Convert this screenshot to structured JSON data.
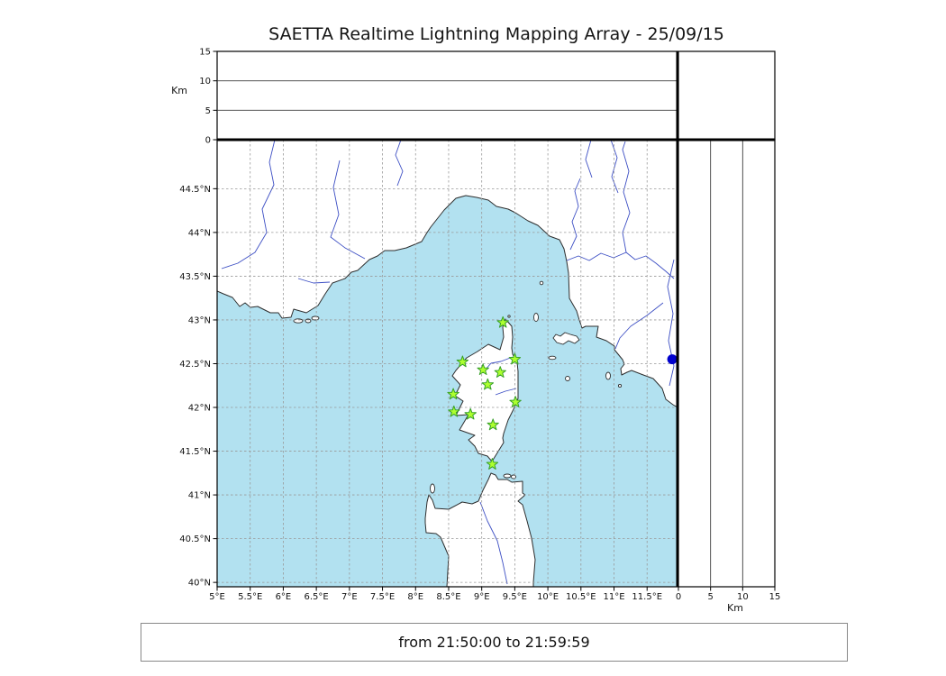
{
  "title": "SAETTA Realtime Lightning Mapping Array - 25/09/15",
  "footer": "from 21:50:00 to 21:59:59",
  "colors": {
    "sea": "#b2e1f0",
    "land": "#ffffff",
    "coast": "#2e2e2e",
    "river": "#3d4fc4",
    "grid": "#999999",
    "panel_line": "#3c3c3c",
    "station_fill": "#adff2f",
    "station_edge": "#37a028",
    "event_dot": "#0000cd"
  },
  "chart_data": {
    "type": "scatter",
    "title": "SAETTA Realtime Lightning Mapping Array - 25/09/15",
    "subtitle": "from 21:50:00 to 21:59:59",
    "map": {
      "lon_range": [
        5.0,
        11.96
      ],
      "lat_range": [
        39.95,
        45.06
      ],
      "grid": "dashed 0.5 degree graticule",
      "lon_ticks": [
        {
          "v": 5,
          "label": "5°E"
        },
        {
          "v": 5.5,
          "label": "5.5°E"
        },
        {
          "v": 6,
          "label": "6°E"
        },
        {
          "v": 6.5,
          "label": "6.5°E"
        },
        {
          "v": 7,
          "label": "7°E"
        },
        {
          "v": 7.5,
          "label": "7.5°E"
        },
        {
          "v": 8,
          "label": "8°E"
        },
        {
          "v": 8.5,
          "label": "8.5°E"
        },
        {
          "v": 9,
          "label": "9°E"
        },
        {
          "v": 9.5,
          "label": "9.5°E"
        },
        {
          "v": 10,
          "label": "10°E"
        },
        {
          "v": 10.5,
          "label": "10.5°E"
        },
        {
          "v": 11,
          "label": "11°E"
        },
        {
          "v": 11.5,
          "label": "11.5°E"
        }
      ],
      "lat_ticks": [
        {
          "v": 40,
          "label": "40°N"
        },
        {
          "v": 40.5,
          "label": "40.5°N"
        },
        {
          "v": 41,
          "label": "41°N"
        },
        {
          "v": 41.5,
          "label": "41.5°N"
        },
        {
          "v": 42,
          "label": "42°N"
        },
        {
          "v": 42.5,
          "label": "42.5°N"
        },
        {
          "v": 43,
          "label": "43°N"
        },
        {
          "v": 43.5,
          "label": "43.5°N"
        },
        {
          "v": 44,
          "label": "44°N"
        },
        {
          "v": 44.5,
          "label": "44.5°N"
        }
      ],
      "stations": [
        {
          "lon": 9.32,
          "lat": 42.97
        },
        {
          "lon": 8.71,
          "lat": 42.52
        },
        {
          "lon": 9.02,
          "lat": 42.43
        },
        {
          "lon": 9.5,
          "lat": 42.55
        },
        {
          "lon": 9.28,
          "lat": 42.4
        },
        {
          "lon": 9.09,
          "lat": 42.26
        },
        {
          "lon": 8.57,
          "lat": 42.15
        },
        {
          "lon": 9.51,
          "lat": 42.06
        },
        {
          "lon": 8.58,
          "lat": 41.95
        },
        {
          "lon": 8.83,
          "lat": 41.92
        },
        {
          "lon": 9.17,
          "lat": 41.8
        },
        {
          "lon": 9.16,
          "lat": 41.35
        }
      ],
      "event_marker": {
        "lon": 11.88,
        "lat": 42.55
      },
      "lightning_sources": []
    },
    "alt_axis": {
      "label": "Km",
      "range": [
        0,
        15
      ],
      "gridlines": [
        5,
        10
      ],
      "ticks": [
        {
          "v": 0,
          "label": "0"
        },
        {
          "v": 5,
          "label": "5"
        },
        {
          "v": 10,
          "label": "10"
        },
        {
          "v": 15,
          "label": "15"
        }
      ],
      "values": []
    }
  }
}
